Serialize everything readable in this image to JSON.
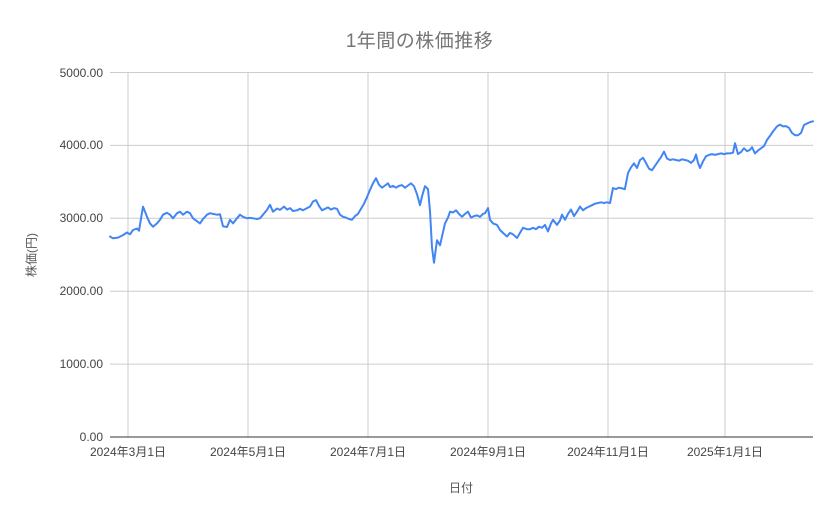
{
  "colors": {
    "background": "#ffffff",
    "line": "#4285f4",
    "grid": "#cccccc",
    "axis_line": "#333333",
    "title_text": "#757575",
    "tick_text": "#444444",
    "axis_title_text": "#555555"
  },
  "chart_data": {
    "type": "line",
    "title": "1年間の株価推移",
    "xlabel": "日付",
    "ylabel": "株価(円)",
    "ylim": [
      0,
      5000
    ],
    "grid": true,
    "legend": "none",
    "y_ticks": [
      {
        "value": 0,
        "label": "0.00"
      },
      {
        "value": 1000,
        "label": "1000.00"
      },
      {
        "value": 2000,
        "label": "2000.00"
      },
      {
        "value": 3000,
        "label": "3000.00"
      },
      {
        "value": 4000,
        "label": "4000.00"
      },
      {
        "value": 5000,
        "label": "5000.00"
      }
    ],
    "x_ticks": [
      {
        "t": 0.0256,
        "label": "2024年3月1日"
      },
      {
        "t": 0.1963,
        "label": "2024年5月1日"
      },
      {
        "t": 0.367,
        "label": "2024年7月1日"
      },
      {
        "t": 0.5377,
        "label": "2024年9月1日"
      },
      {
        "t": 0.7084,
        "label": "2024年11月1日"
      },
      {
        "t": 0.8748,
        "label": "2025年1月1日"
      }
    ],
    "series": [
      {
        "color": "#4285f4",
        "points": [
          [
            0.0,
            2750
          ],
          [
            0.0043,
            2725
          ],
          [
            0.0114,
            2735
          ],
          [
            0.0185,
            2770
          ],
          [
            0.0242,
            2805
          ],
          [
            0.0284,
            2780
          ],
          [
            0.0327,
            2840
          ],
          [
            0.0384,
            2860
          ],
          [
            0.0413,
            2830
          ],
          [
            0.0469,
            3160
          ],
          [
            0.0526,
            3020
          ],
          [
            0.0569,
            2930
          ],
          [
            0.0612,
            2885
          ],
          [
            0.0669,
            2930
          ],
          [
            0.0711,
            2980
          ],
          [
            0.0754,
            3050
          ],
          [
            0.0811,
            3075
          ],
          [
            0.0853,
            3050
          ],
          [
            0.0896,
            3000
          ],
          [
            0.0953,
            3070
          ],
          [
            0.0996,
            3090
          ],
          [
            0.1038,
            3050
          ],
          [
            0.1095,
            3090
          ],
          [
            0.1138,
            3070
          ],
          [
            0.1181,
            3000
          ],
          [
            0.1238,
            2960
          ],
          [
            0.128,
            2930
          ],
          [
            0.1323,
            2990
          ],
          [
            0.138,
            3050
          ],
          [
            0.1423,
            3070
          ],
          [
            0.1465,
            3060
          ],
          [
            0.1522,
            3050
          ],
          [
            0.1565,
            3055
          ],
          [
            0.1607,
            2890
          ],
          [
            0.1664,
            2880
          ],
          [
            0.1707,
            2980
          ],
          [
            0.175,
            2930
          ],
          [
            0.1807,
            3000
          ],
          [
            0.1849,
            3050
          ],
          [
            0.1892,
            3020
          ],
          [
            0.1949,
            3000
          ],
          [
            0.1992,
            3005
          ],
          [
            0.2034,
            3000
          ],
          [
            0.2091,
            2990
          ],
          [
            0.2134,
            3000
          ],
          [
            0.2176,
            3050
          ],
          [
            0.2233,
            3115
          ],
          [
            0.2276,
            3185
          ],
          [
            0.2319,
            3090
          ],
          [
            0.2376,
            3135
          ],
          [
            0.2418,
            3115
          ],
          [
            0.2475,
            3160
          ],
          [
            0.2518,
            3120
          ],
          [
            0.256,
            3140
          ],
          [
            0.2603,
            3100
          ],
          [
            0.266,
            3110
          ],
          [
            0.2703,
            3130
          ],
          [
            0.2745,
            3110
          ],
          [
            0.2802,
            3140
          ],
          [
            0.2845,
            3160
          ],
          [
            0.2888,
            3230
          ],
          [
            0.293,
            3250
          ],
          [
            0.2973,
            3170
          ],
          [
            0.3016,
            3110
          ],
          [
            0.3058,
            3130
          ],
          [
            0.3101,
            3150
          ],
          [
            0.3144,
            3120
          ],
          [
            0.3186,
            3140
          ],
          [
            0.3229,
            3130
          ],
          [
            0.3272,
            3050
          ],
          [
            0.3314,
            3020
          ],
          [
            0.3357,
            3010
          ],
          [
            0.34,
            2990
          ],
          [
            0.3442,
            2980
          ],
          [
            0.3485,
            3030
          ],
          [
            0.3528,
            3060
          ],
          [
            0.357,
            3130
          ],
          [
            0.3613,
            3200
          ],
          [
            0.3656,
            3290
          ],
          [
            0.3698,
            3390
          ],
          [
            0.3741,
            3480
          ],
          [
            0.3784,
            3550
          ],
          [
            0.3826,
            3460
          ],
          [
            0.3869,
            3420
          ],
          [
            0.3912,
            3450
          ],
          [
            0.3954,
            3480
          ],
          [
            0.3983,
            3430
          ],
          [
            0.4025,
            3445
          ],
          [
            0.4068,
            3420
          ],
          [
            0.4111,
            3445
          ],
          [
            0.4154,
            3455
          ],
          [
            0.4196,
            3420
          ],
          [
            0.4239,
            3450
          ],
          [
            0.4282,
            3480
          ],
          [
            0.4324,
            3440
          ],
          [
            0.4367,
            3330
          ],
          [
            0.441,
            3180
          ],
          [
            0.4438,
            3300
          ],
          [
            0.4481,
            3440
          ],
          [
            0.4523,
            3400
          ],
          [
            0.4552,
            3100
          ],
          [
            0.458,
            2600
          ],
          [
            0.4609,
            2390
          ],
          [
            0.4651,
            2700
          ],
          [
            0.4694,
            2630
          ],
          [
            0.4737,
            2810
          ],
          [
            0.4765,
            2930
          ],
          [
            0.4808,
            3010
          ],
          [
            0.4836,
            3090
          ],
          [
            0.4879,
            3080
          ],
          [
            0.4922,
            3110
          ],
          [
            0.4964,
            3060
          ],
          [
            0.5007,
            3020
          ],
          [
            0.505,
            3060
          ],
          [
            0.5092,
            3090
          ],
          [
            0.5135,
            3010
          ],
          [
            0.5178,
            3030
          ],
          [
            0.522,
            3040
          ],
          [
            0.5263,
            3020
          ],
          [
            0.5306,
            3060
          ],
          [
            0.5334,
            3070
          ],
          [
            0.5377,
            3140
          ],
          [
            0.5405,
            2980
          ],
          [
            0.5448,
            2930
          ],
          [
            0.5505,
            2910
          ],
          [
            0.5548,
            2840
          ],
          [
            0.559,
            2800
          ],
          [
            0.5647,
            2750
          ],
          [
            0.569,
            2800
          ],
          [
            0.5733,
            2780
          ],
          [
            0.5789,
            2730
          ],
          [
            0.5832,
            2800
          ],
          [
            0.5875,
            2870
          ],
          [
            0.5932,
            2850
          ],
          [
            0.5974,
            2850
          ],
          [
            0.6017,
            2870
          ],
          [
            0.606,
            2850
          ],
          [
            0.6102,
            2885
          ],
          [
            0.6145,
            2870
          ],
          [
            0.6188,
            2910
          ],
          [
            0.623,
            2820
          ],
          [
            0.6273,
            2930
          ],
          [
            0.6302,
            2980
          ],
          [
            0.6359,
            2910
          ],
          [
            0.6401,
            2970
          ],
          [
            0.643,
            3050
          ],
          [
            0.6472,
            2980
          ],
          [
            0.6515,
            3060
          ],
          [
            0.6558,
            3120
          ],
          [
            0.66,
            3030
          ],
          [
            0.6643,
            3090
          ],
          [
            0.6686,
            3160
          ],
          [
            0.6728,
            3110
          ],
          [
            0.6771,
            3140
          ],
          [
            0.6814,
            3160
          ],
          [
            0.6856,
            3180
          ],
          [
            0.6899,
            3200
          ],
          [
            0.6941,
            3210
          ],
          [
            0.6984,
            3220
          ],
          [
            0.7027,
            3210
          ],
          [
            0.7069,
            3220
          ],
          [
            0.7112,
            3210
          ],
          [
            0.7155,
            3415
          ],
          [
            0.7197,
            3400
          ],
          [
            0.724,
            3420
          ],
          [
            0.7283,
            3410
          ],
          [
            0.7325,
            3400
          ],
          [
            0.7368,
            3620
          ],
          [
            0.7411,
            3700
          ],
          [
            0.7454,
            3755
          ],
          [
            0.7496,
            3690
          ],
          [
            0.7539,
            3800
          ],
          [
            0.7582,
            3830
          ],
          [
            0.7624,
            3760
          ],
          [
            0.7667,
            3680
          ],
          [
            0.771,
            3660
          ],
          [
            0.7752,
            3720
          ],
          [
            0.7795,
            3780
          ],
          [
            0.7838,
            3840
          ],
          [
            0.788,
            3915
          ],
          [
            0.7923,
            3820
          ],
          [
            0.7966,
            3800
          ],
          [
            0.8008,
            3810
          ],
          [
            0.8051,
            3800
          ],
          [
            0.8094,
            3790
          ],
          [
            0.8136,
            3810
          ],
          [
            0.8179,
            3800
          ],
          [
            0.8222,
            3790
          ],
          [
            0.8264,
            3760
          ],
          [
            0.8307,
            3800
          ],
          [
            0.8336,
            3875
          ],
          [
            0.8364,
            3760
          ],
          [
            0.8393,
            3690
          ],
          [
            0.8435,
            3780
          ],
          [
            0.8478,
            3850
          ],
          [
            0.8521,
            3870
          ],
          [
            0.8563,
            3880
          ],
          [
            0.8606,
            3870
          ],
          [
            0.8649,
            3880
          ],
          [
            0.8691,
            3890
          ],
          [
            0.8734,
            3880
          ],
          [
            0.8777,
            3890
          ],
          [
            0.8819,
            3890
          ],
          [
            0.8862,
            3900
          ],
          [
            0.8891,
            4030
          ],
          [
            0.8933,
            3880
          ],
          [
            0.8976,
            3910
          ],
          [
            0.9018,
            3960
          ],
          [
            0.9061,
            3920
          ],
          [
            0.9104,
            3940
          ],
          [
            0.9132,
            3975
          ],
          [
            0.9175,
            3890
          ],
          [
            0.9218,
            3930
          ],
          [
            0.926,
            3960
          ],
          [
            0.9303,
            3990
          ],
          [
            0.9346,
            4075
          ],
          [
            0.9388,
            4130
          ],
          [
            0.9431,
            4190
          ],
          [
            0.9488,
            4260
          ],
          [
            0.9531,
            4285
          ],
          [
            0.9573,
            4260
          ],
          [
            0.9616,
            4265
          ],
          [
            0.9659,
            4240
          ],
          [
            0.9701,
            4170
          ],
          [
            0.9744,
            4140
          ],
          [
            0.9787,
            4140
          ],
          [
            0.9829,
            4170
          ],
          [
            0.9872,
            4280
          ],
          [
            0.9915,
            4300
          ],
          [
            0.9957,
            4320
          ],
          [
            1.0,
            4330
          ]
        ]
      }
    ]
  }
}
